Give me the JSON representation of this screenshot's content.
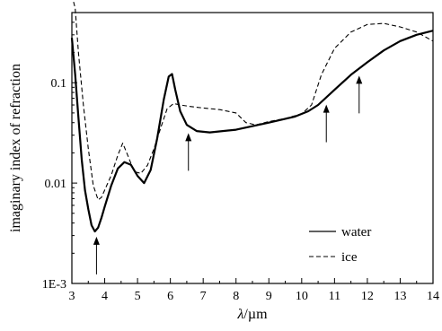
{
  "chart_data": {
    "type": "line",
    "xlabel_italic": "λ",
    "xlabel_rest": "/µm",
    "ylabel": "imaginary index of refraction",
    "xlim": [
      3,
      14
    ],
    "ylim": [
      0.001,
      0.5
    ],
    "y_scale": "log",
    "grid": false,
    "legend_position": "bottom-right",
    "x_ticks": [
      "3",
      "4",
      "5",
      "6",
      "7",
      "8",
      "9",
      "10",
      "11",
      "12",
      "13",
      "14"
    ],
    "y_ticks": [
      {
        "value": 0.001,
        "label": "1E-3"
      },
      {
        "value": 0.01,
        "label": "0.01"
      },
      {
        "value": 0.1,
        "label": "0.1"
      }
    ],
    "series": [
      {
        "name": "water",
        "style": "solid",
        "color": "#000000",
        "x": [
          3.0,
          3.1,
          3.2,
          3.3,
          3.4,
          3.5,
          3.6,
          3.7,
          3.8,
          3.9,
          4.0,
          4.2,
          4.4,
          4.6,
          4.8,
          5.0,
          5.2,
          5.4,
          5.6,
          5.8,
          5.95,
          6.05,
          6.15,
          6.3,
          6.5,
          6.8,
          7.2,
          8.0,
          9.0,
          9.8,
          10.2,
          10.5,
          11.0,
          11.5,
          12.0,
          12.5,
          13.0,
          13.5,
          14.0
        ],
        "y": [
          0.28,
          0.12,
          0.045,
          0.017,
          0.0085,
          0.0055,
          0.0038,
          0.0033,
          0.0036,
          0.0045,
          0.0058,
          0.0095,
          0.014,
          0.0162,
          0.0152,
          0.0118,
          0.01,
          0.0135,
          0.028,
          0.068,
          0.115,
          0.122,
          0.085,
          0.052,
          0.038,
          0.033,
          0.032,
          0.034,
          0.04,
          0.046,
          0.052,
          0.06,
          0.085,
          0.12,
          0.16,
          0.21,
          0.26,
          0.3,
          0.33
        ]
      },
      {
        "name": "ice",
        "style": "dashed",
        "color": "#000000",
        "x": [
          3.0,
          3.1,
          3.2,
          3.35,
          3.5,
          3.65,
          3.8,
          3.9,
          4.0,
          4.2,
          4.4,
          4.55,
          4.7,
          4.9,
          5.1,
          5.3,
          5.5,
          5.7,
          5.9,
          6.1,
          6.3,
          6.6,
          7.0,
          7.5,
          8.0,
          8.3,
          8.6,
          9.0,
          9.5,
          10.0,
          10.3,
          10.6,
          11.0,
          11.5,
          12.0,
          12.5,
          13.0,
          13.5,
          14.0
        ],
        "y": [
          0.75,
          0.55,
          0.2,
          0.06,
          0.022,
          0.0095,
          0.0068,
          0.0072,
          0.0085,
          0.012,
          0.019,
          0.025,
          0.019,
          0.013,
          0.0125,
          0.015,
          0.022,
          0.035,
          0.055,
          0.062,
          0.06,
          0.058,
          0.056,
          0.054,
          0.05,
          0.04,
          0.038,
          0.041,
          0.044,
          0.049,
          0.06,
          0.12,
          0.22,
          0.32,
          0.38,
          0.39,
          0.36,
          0.32,
          0.26
        ]
      }
    ],
    "arrows_at_x": [
      3.75,
      6.55,
      10.75,
      11.75
    ]
  }
}
